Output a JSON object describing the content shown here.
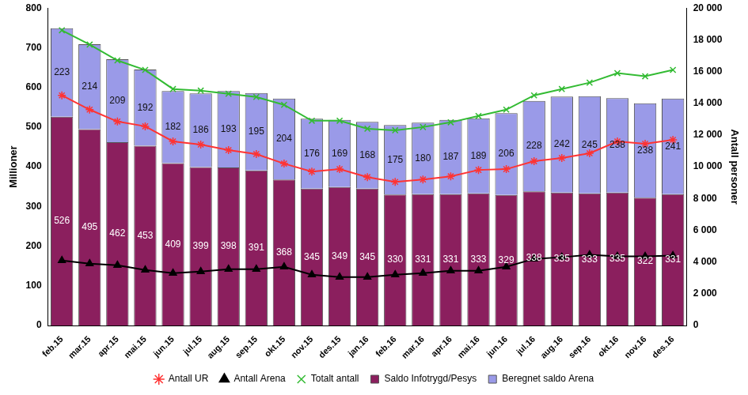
{
  "chart_data": {
    "type": "bar",
    "stacked": true,
    "data_labels": true,
    "grid": false,
    "legend": "bottom",
    "y_label": "Millioner",
    "y2_label": "Antall personer",
    "categories": [
      "feb.15",
      "mar.15",
      "apr.15",
      "mai.15",
      "jun.15",
      "jul.15",
      "aug.15",
      "sep.15",
      "okt.15",
      "nov.15",
      "des.15",
      "jan.16",
      "feb.16",
      "mar.16",
      "apr.16",
      "mai.16",
      "jun.16",
      "jul.16",
      "aug.16",
      "sep.16",
      "okt.16",
      "nov.16",
      "des.16"
    ],
    "ylim": [
      0,
      800
    ],
    "yticks": [
      0,
      100,
      200,
      300,
      400,
      500,
      600,
      700,
      800
    ],
    "y2lim": [
      0,
      20000
    ],
    "y2ticks": [
      0,
      {
        "value": 2000,
        "label": "2 000"
      },
      {
        "value": 4000,
        "label": "4 000"
      },
      {
        "value": 6000,
        "label": "6 000"
      },
      {
        "value": 8000,
        "label": "8 000"
      },
      {
        "value": 10000,
        "label": "10 000"
      },
      {
        "value": 12000,
        "label": "12 000"
      },
      {
        "value": 14000,
        "label": "14 000"
      },
      {
        "value": 16000,
        "label": "16 000"
      },
      {
        "value": 18000,
        "label": "18 000"
      },
      {
        "value": 20000,
        "label": "20 000"
      }
    ],
    "series": [
      {
        "name": "Saldo Infotrygd/Pesys",
        "type": "bar",
        "color": "#8b1f5e",
        "values": [
          526,
          495,
          462,
          453,
          409,
          399,
          398,
          391,
          368,
          345,
          349,
          345,
          330,
          331,
          331,
          333,
          329,
          338,
          335,
          333,
          335,
          322,
          331
        ]
      },
      {
        "name": "Beregnet saldo Arena",
        "type": "bar",
        "color": "#9a9ae8",
        "values": [
          223,
          214,
          209,
          192,
          182,
          186,
          193,
          195,
          204,
          176,
          169,
          168,
          175,
          180,
          187,
          189,
          206,
          228,
          242,
          245,
          238,
          238,
          241
        ]
      },
      {
        "name": "Antall UR",
        "type": "line",
        "axis": "y2",
        "color": "#ff3333",
        "marker": "star",
        "line_style": "solid",
        "values": [
          14500,
          13600,
          12850,
          12550,
          11600,
          11400,
          11050,
          10800,
          10200,
          9700,
          9850,
          9350,
          9050,
          9200,
          9400,
          9800,
          9850,
          10350,
          10550,
          10850,
          11600,
          11450,
          11700
        ]
      },
      {
        "name": "Antall Arena",
        "type": "line",
        "axis": "y2",
        "color": "#000000",
        "marker": "triangle",
        "line_style": "solid",
        "values": [
          4100,
          3900,
          3800,
          3500,
          3300,
          3400,
          3550,
          3550,
          3700,
          3200,
          3050,
          3050,
          3200,
          3300,
          3450,
          3450,
          3700,
          4200,
          4300,
          4450,
          4350,
          4350,
          4400
        ]
      },
      {
        "name": "Totalt antall",
        "type": "line",
        "axis": "y2",
        "color": "#33bb33",
        "marker": "x",
        "line_style": "solid",
        "values": [
          18600,
          17700,
          16700,
          16100,
          14900,
          14800,
          14600,
          14400,
          13900,
          12900,
          12900,
          12400,
          12300,
          12500,
          12800,
          13200,
          13600,
          14500,
          14900,
          15300,
          15900,
          15700,
          16100
        ]
      }
    ]
  }
}
